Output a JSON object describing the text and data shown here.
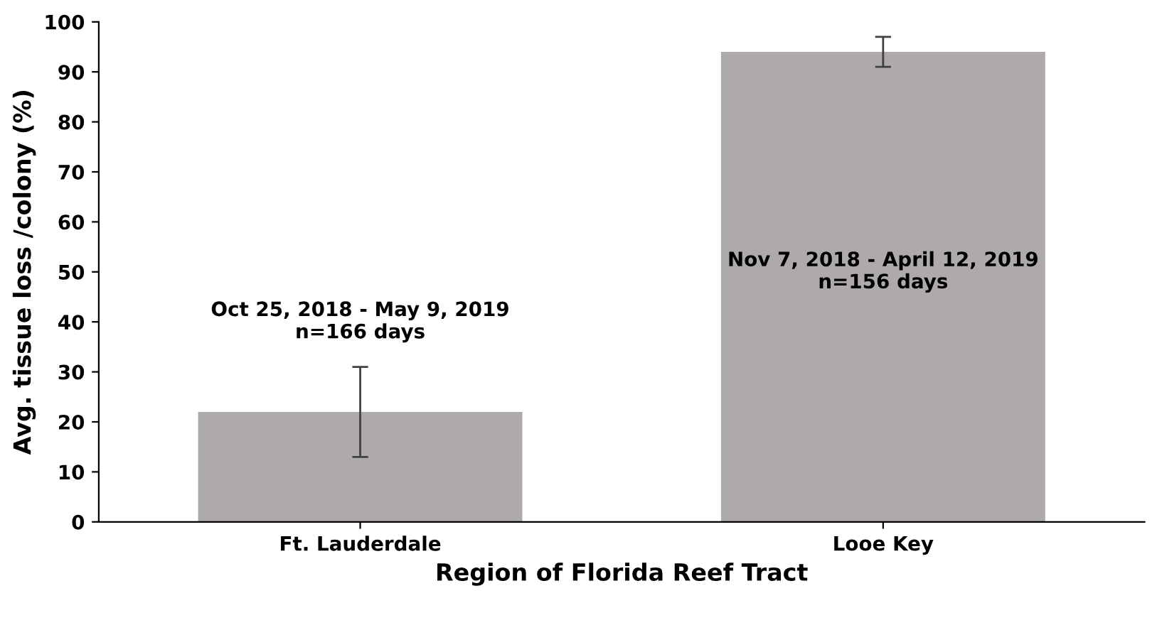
{
  "chart_data": {
    "type": "bar",
    "xlabel": "Region of Florida Reef Tract",
    "ylabel": "Avg. tissue loss /colony (%)",
    "categories": [
      "Ft. Lauderdale",
      "Looe Key"
    ],
    "values": [
      22,
      94
    ],
    "errors": [
      9,
      3
    ],
    "color": "#aeaaaa",
    "ylim": [
      0,
      100
    ],
    "yticks": [
      0,
      10,
      20,
      30,
      40,
      50,
      60,
      70,
      80,
      90,
      100
    ],
    "grid": false,
    "annotations": [
      "Oct 25, 2018 - May 9, 2019\nn=166 days",
      "Nov 7, 2018 - April 12, 2019\nn=156 days"
    ]
  }
}
